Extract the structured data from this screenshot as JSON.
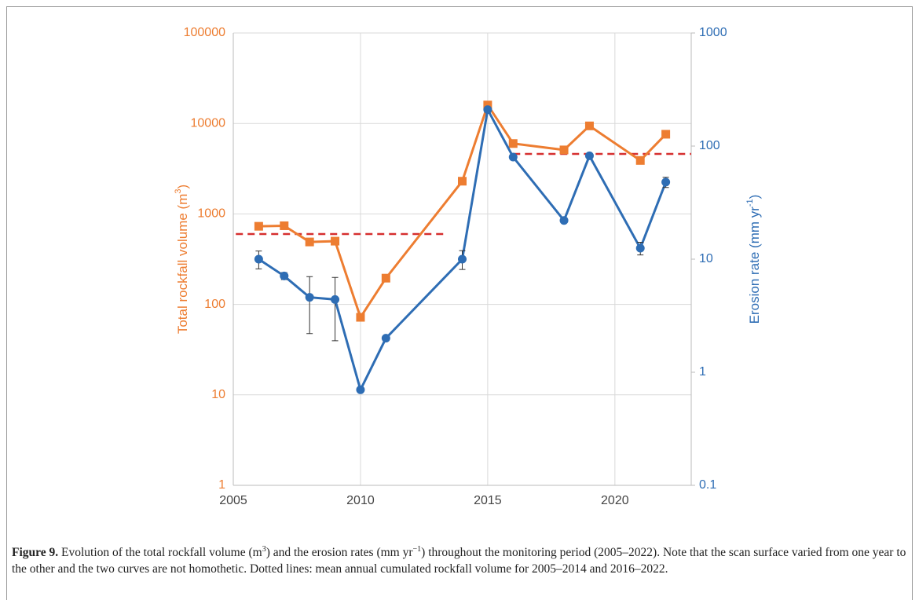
{
  "chart_data": {
    "type": "line",
    "ylabel": [
      "Total rockfall volume (m",
      "3",
      ")"
    ],
    "y2label": [
      "Erosion rate (mm yr",
      "-1",
      ")"
    ],
    "xlim": [
      2005,
      2023
    ],
    "xticks": [
      2005,
      2010,
      2015,
      2020
    ],
    "ylim": [
      1,
      100000
    ],
    "yticks": [
      1,
      10,
      100,
      1000,
      10000,
      100000
    ],
    "log_y": true,
    "y2lim": [
      0.1,
      1000
    ],
    "y2ticks": [
      0.1,
      1,
      10,
      100,
      1000
    ],
    "log_y2": true,
    "grid": true,
    "series": [
      {
        "color": "#ed7d31",
        "marker": "square",
        "axis": "y",
        "x": [
          2006,
          2007,
          2008,
          2009,
          2010,
          2011,
          2014,
          2015,
          2016,
          2018,
          2019,
          2021,
          2022
        ],
        "values": [
          730,
          740,
          490,
          500,
          72,
          195,
          2300,
          16000,
          6000,
          5100,
          9400,
          3900,
          7600
        ]
      },
      {
        "color": "#2e6db4",
        "marker": "circle",
        "axis": "y2",
        "x": [
          2006,
          2007,
          2008,
          2009,
          2010,
          2011,
          2014,
          2015,
          2016,
          2018,
          2019,
          2021,
          2022
        ],
        "values": [
          10,
          7.1,
          4.6,
          4.4,
          0.7,
          2.0,
          10,
          210,
          80,
          22,
          82,
          12.5,
          48
        ],
        "errors": [
          1.8,
          0.5,
          2.4,
          2.5,
          null,
          null,
          1.9,
          null,
          null,
          null,
          null,
          1.6,
          5
        ]
      }
    ],
    "reference_lines": [
      {
        "x": [
          2005.1,
          2013.4
        ],
        "value": 600,
        "color": "#d62f2f"
      },
      {
        "x": [
          2016,
          2023
        ],
        "value": 4600,
        "color": "#d62f2f"
      }
    ]
  },
  "caption": {
    "label": "Figure 9.",
    "text": [
      "Evolution of the total rockfall volume (m",
      "3",
      ") and the erosion rates (mm yr",
      "−1",
      ") throughout the monitoring period (2005–2022). Note that the scan surface varied from one year to the other and the two curves are not homothetic. Dotted lines: mean annual cumulated rockfall volume for 2005–2014 and 2016–2022."
    ]
  }
}
